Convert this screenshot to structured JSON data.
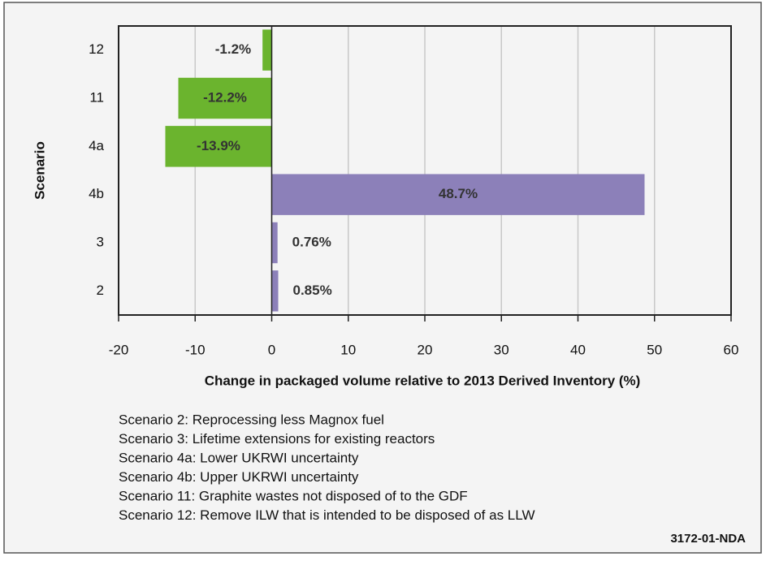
{
  "chart_data": {
    "type": "barh",
    "categories": [
      "12",
      "11",
      "4a",
      "4b",
      "3",
      "2"
    ],
    "values": [
      -1.2,
      -12.2,
      -13.9,
      48.7,
      0.76,
      0.85
    ],
    "value_labels": [
      "-1.2%",
      "-12.2%",
      "-13.9%",
      "48.7%",
      "0.76%",
      "0.85%"
    ],
    "colors": [
      "#6bb42e",
      "#6bb42e",
      "#6bb42e",
      "#8c80b9",
      "#8c80b9",
      "#8c80b9"
    ],
    "xlim": [
      -20,
      60
    ],
    "xticks": [
      -20,
      -10,
      0,
      10,
      20,
      30,
      40,
      50,
      60
    ],
    "grid": true,
    "xlabel": "Change in packaged volume relative to 2013 Derived Inventory (%)",
    "ylabel": "Scenario",
    "notes": [
      "Scenario 2: Reprocessing less Magnox fuel",
      "Scenario 3: Lifetime extensions for existing reactors",
      "Scenario 4a: Lower UKRWI uncertainty",
      "Scenario 4b: Upper UKRWI uncertainty",
      "Scenario 11: Graphite wastes not disposed of to the GDF",
      "Scenario 12: Remove ILW that is intended to be disposed of as LLW"
    ],
    "footnote": "3172-01-NDA"
  }
}
